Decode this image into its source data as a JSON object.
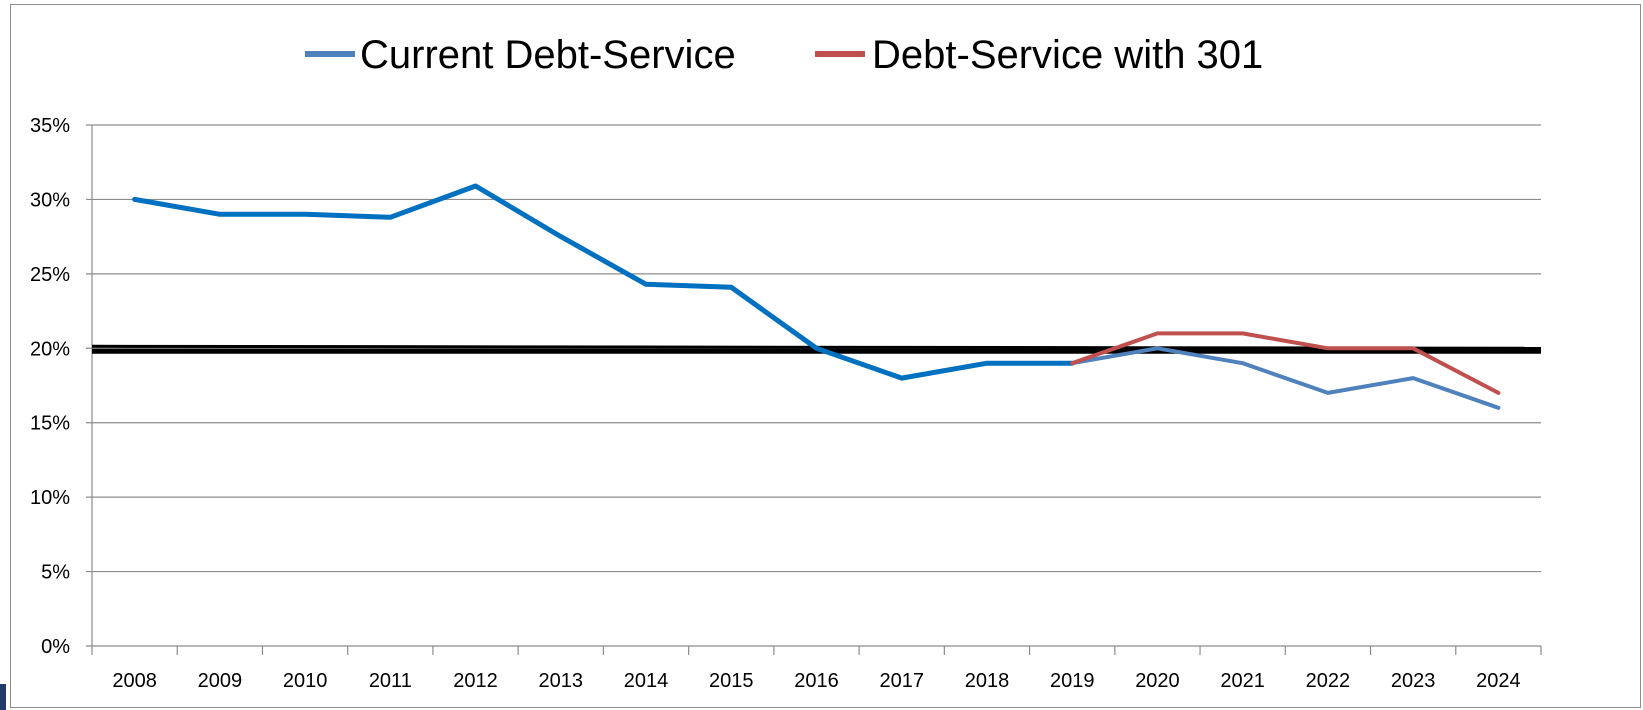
{
  "chart_data": {
    "type": "line",
    "title": "",
    "xlabel": "",
    "ylabel": "",
    "categories": [
      "2008",
      "2009",
      "2010",
      "2011",
      "2012",
      "2013",
      "2014",
      "2015",
      "2016",
      "2017",
      "2018",
      "2019",
      "2020",
      "2021",
      "2022",
      "2023",
      "2024"
    ],
    "y_ticks": [
      "0%",
      "5%",
      "10%",
      "15%",
      "20%",
      "25%",
      "30%",
      "35%"
    ],
    "ylim": [
      0,
      35
    ],
    "grid": true,
    "legend_position": "top",
    "series": [
      {
        "name": "Current Debt-Service",
        "color": "#0070c0",
        "projection_color": "#4f81bd",
        "values": [
          30,
          29,
          29,
          28.8,
          30.9,
          27.5,
          24.3,
          24.1,
          20,
          18,
          19,
          19,
          20,
          19,
          17,
          18,
          16
        ]
      },
      {
        "name": "Debt-Service with 301",
        "color": "#c0504d",
        "values": [
          null,
          null,
          null,
          null,
          null,
          null,
          null,
          null,
          null,
          null,
          null,
          19,
          21,
          21,
          20,
          20,
          17
        ]
      }
    ],
    "reference_line": {
      "value": 20,
      "color": "#000000"
    }
  }
}
